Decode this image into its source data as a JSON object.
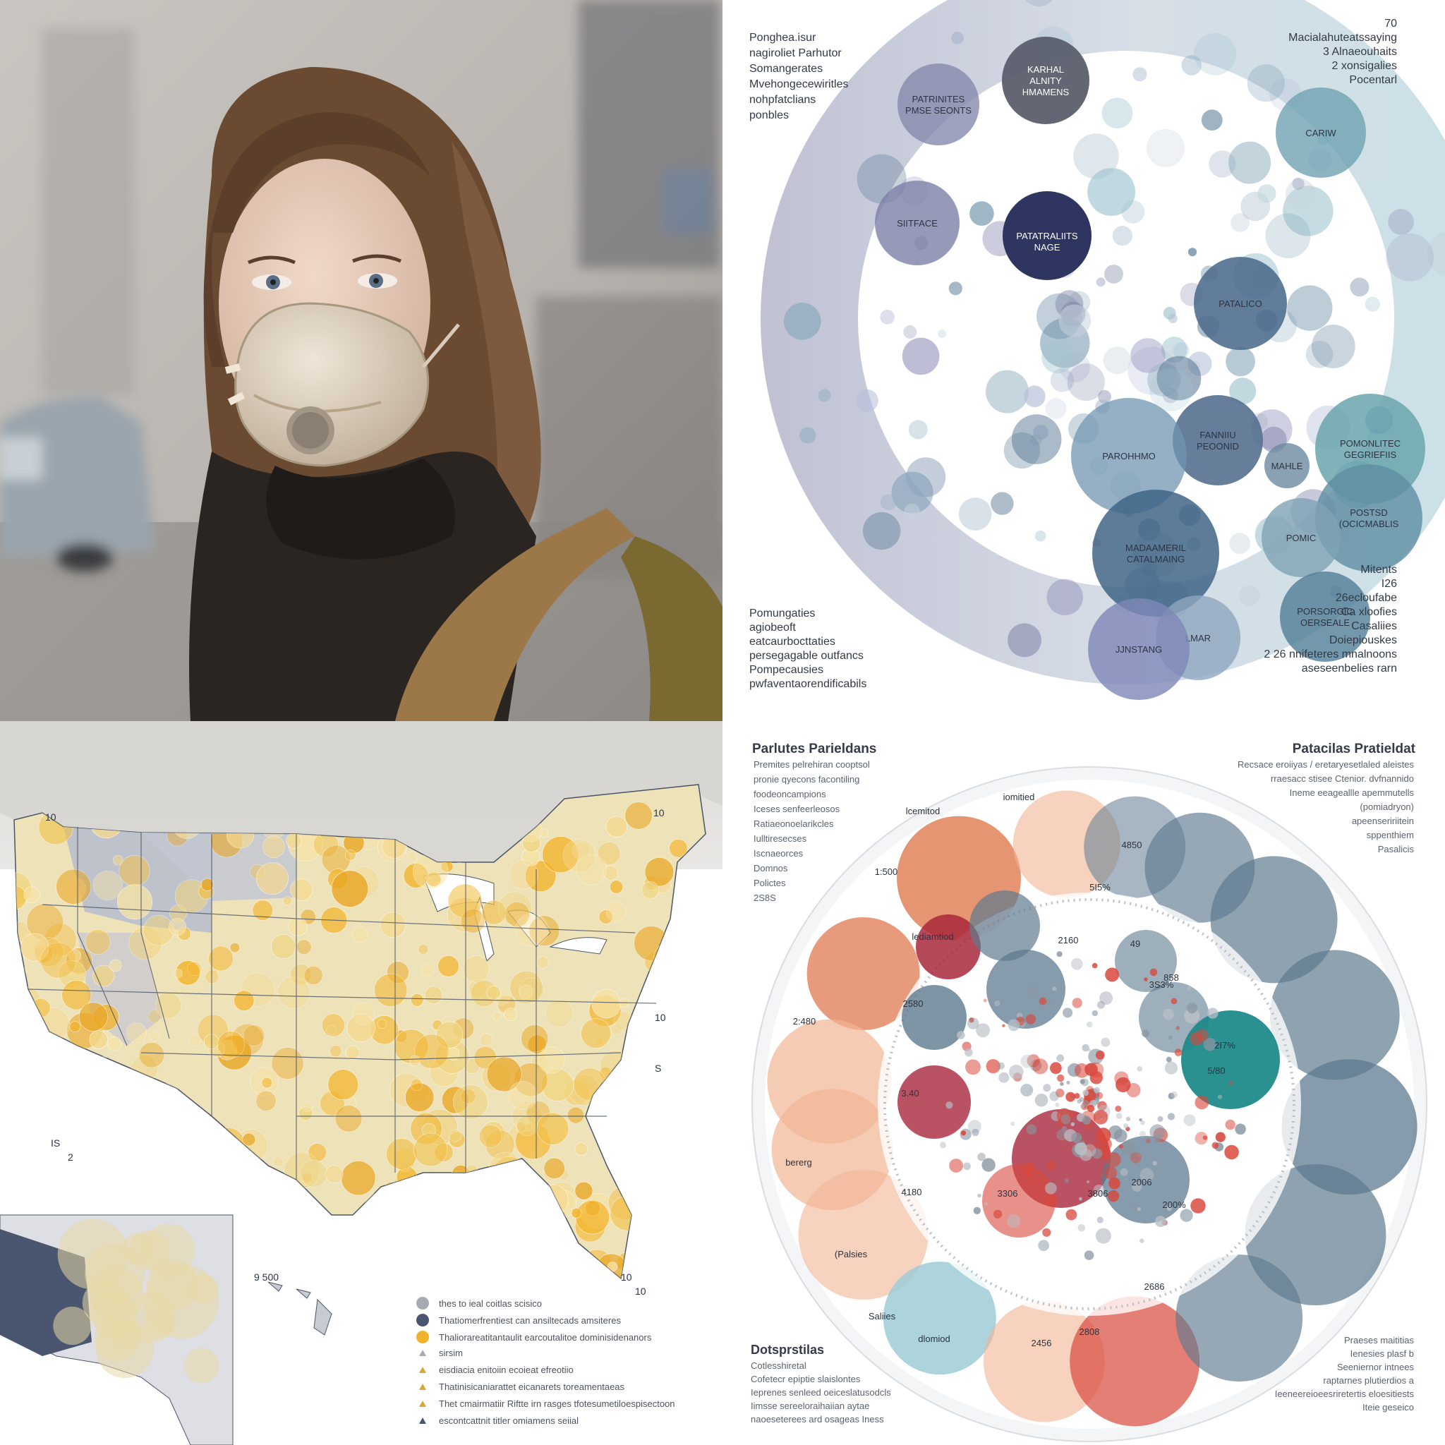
{
  "panels": {
    "photo": {
      "subject": "woman-wearing-respirator-mask",
      "colors": {
        "haze": "#bdb8b1",
        "hair": "#6b4a32",
        "mask": "#d8cbbb",
        "jacket": "#2a2521",
        "strap": "#9c7748",
        "car": "#9aa4ad"
      }
    },
    "cluster": {
      "header_left": [
        "Ponghea.isur",
        "nagiroliet Parhutor",
        "Somangerates",
        "Mvehongecewiritles",
        "nohpfatclians",
        "ponbles"
      ],
      "header_right": [
        "70",
        "Macialahuteatssaying",
        "3 Alnaeouhaits",
        "2 xonsigalies",
        "Pocentarl"
      ],
      "footer_left": [
        "Pomungaties",
        "agiobeoft",
        "eatcaurbocttaties",
        "persegagable outfancs",
        "Pompecausies",
        "pwfaventaorendificabils"
      ],
      "footer_right": [
        "Mitents",
        "I26",
        "26ecloufabe",
        "Ca xloofies",
        "Casaliies",
        "Doiepiouskes",
        "2 26 nnifeteres mnalnoons",
        "aseseenbelies rarn"
      ],
      "circle_labels": [
        "PATRINITES PMSE SEONTS",
        "KARHAL ALNITY HMAMENS",
        "SIITFACE",
        "PATATRALIITS NAGE",
        "PATALICO",
        "POMONLITEC GEGRIEFIIS",
        "FANNIIU PEOONID",
        "MAHLE",
        "PAROHHMO",
        "POSTSD (OCICMABLIS",
        "POMIC",
        "MADAAMERIL CATALMAING",
        "PORSORGIC OERSEALE",
        "LMAR",
        "JJNSTANG",
        "CARIW"
      ]
    },
    "map": {
      "scale_labels": [
        "10",
        "10",
        "10",
        "S",
        "IS",
        "2",
        "10",
        "10",
        "9 500"
      ],
      "legend": [
        {
          "symbol": "circle-gray",
          "label": "thes to ieal coitlas scisico"
        },
        {
          "symbol": "circle-navy",
          "label": "Thatiomerfrentiest can ansiltecads amsiteres"
        },
        {
          "symbol": "circle-yellow",
          "label": "Thaliorareatitantaulit earcoutalitoe dominisidenanors"
        },
        {
          "symbol": "triangle-gray",
          "label": "sirsim"
        },
        {
          "symbol": "triangle-yellow",
          "label": "eisdiacia enitoiin ecoieat efreotiio"
        },
        {
          "symbol": "triangle-yellow",
          "label": "Thatinisicaniarattet eicanarets toreamentaeas"
        },
        {
          "symbol": "triangle-yellow",
          "label": "Thet cmairmatiir Riftte irn rasges tfotesumetiloespisectoon"
        },
        {
          "symbol": "triangle-navy",
          "label": "escontcattnit titler omiamens seiial"
        }
      ]
    },
    "rings": {
      "title_left": "Parlutes Parieldans",
      "subtitle_left": [
        "Premites pelrehiran cooptsol",
        "pronie qyecons facontiling",
        "foodeoncampions",
        "Iceses senfeerleosos",
        "Ratiaeonoelarikcles",
        "Iulltiresecses",
        "Iscnaeorces",
        "Domnos",
        "Polictes",
        "2S8S"
      ],
      "title_right": "Patacilas Pratieldat",
      "subtitle_right": [
        "Recsace eroiiyas / eretaryesetlaled aleistes",
        "rraesacc stisee Ctenior. dvfnannido",
        "Ineme eeageallle apemmutells",
        "(pomiadryon)",
        "apeenseririitein",
        "sppenthiem",
        "Pasalicis"
      ],
      "footer_left_title": "Dotsprstilas",
      "footer_left": [
        "Cotlesshiretal",
        "Cofetecr epiptie slaislontes",
        "Ieprenes senleed oeiceslatusodcls",
        "Iimsse sereeloraihaiian aytae",
        "naoeseterees ard osageas Iness"
      ],
      "footer_right": [
        "Praeses maititias",
        "Ienesies plasf b",
        "Seeniernor intnees",
        "raptarnes plutierdios a",
        "Ieeneereioeesriretertis eloesitiests",
        "Iteie geseico"
      ],
      "value_labels": [
        "lcemitod",
        "iomitied",
        "1:500",
        "4850",
        "5I5%",
        "lediamtiod",
        "2160",
        "49",
        "858",
        "2580",
        "3S3%",
        "2:480",
        "2I7%",
        "5/80",
        "3.40",
        "bererg",
        "4180",
        "3306",
        "3806",
        "2006",
        "200%",
        "(Palsies",
        "2686",
        "Saliies",
        "dlomiod",
        "2456",
        "2808"
      ],
      "colors": {
        "orange": "#e07a50",
        "peach": "#f2b594",
        "slate": "#5e7a8f",
        "teal": "#1f8a8a",
        "crimson": "#a8283c",
        "red": "#d9483c",
        "lightblue": "#9fcbd6"
      }
    }
  }
}
